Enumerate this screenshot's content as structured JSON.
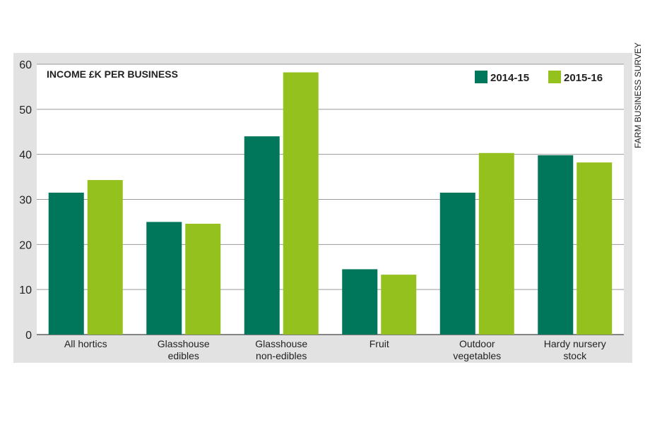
{
  "chart_data": {
    "type": "bar",
    "title": "INCOME £K PER BUSINESS",
    "source": "FARM BUSINESS SURVEY",
    "categories": [
      [
        "All hortics"
      ],
      [
        "Glasshouse",
        "edibles"
      ],
      [
        "Glasshouse",
        "non-edibles"
      ],
      [
        "Fruit"
      ],
      [
        "Outdoor",
        "vegetables"
      ],
      [
        "Hardy nursery",
        "stock"
      ]
    ],
    "series": [
      {
        "name": "2014-15",
        "color": "#00765a",
        "values": [
          31.5,
          25,
          44,
          14.5,
          31.5,
          39.8
        ]
      },
      {
        "name": "2015-16",
        "color": "#95c11f",
        "values": [
          34.3,
          24.6,
          58.2,
          13.3,
          40.3,
          38.2
        ]
      }
    ],
    "ylim": [
      0,
      60
    ],
    "yticks": [
      0,
      10,
      20,
      30,
      40,
      50,
      60
    ],
    "grid": true,
    "legend_position": "top-right"
  }
}
